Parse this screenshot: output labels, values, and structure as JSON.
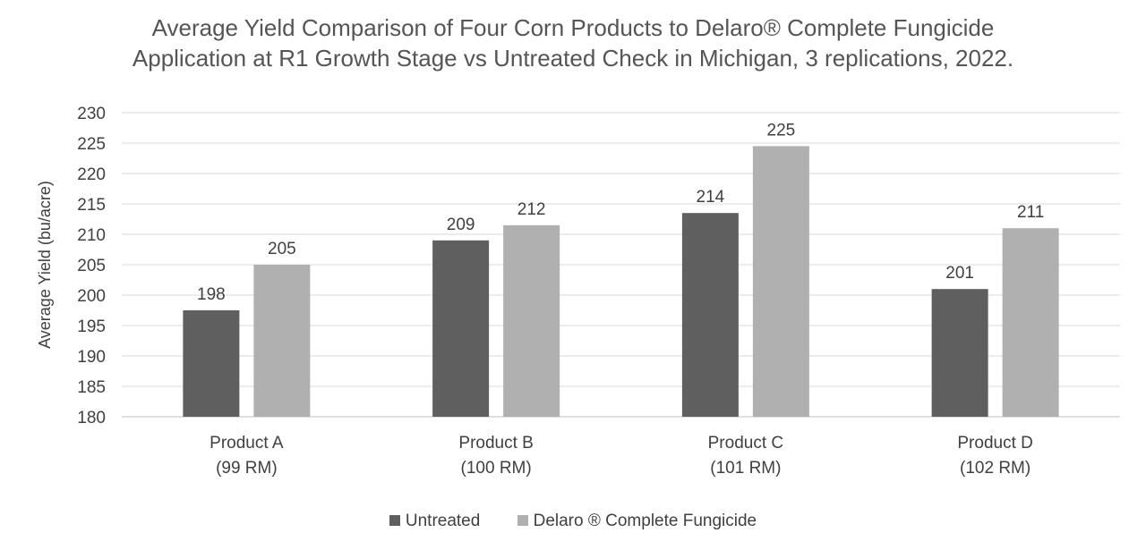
{
  "chart_data": {
    "type": "bar",
    "title_line1": "Average Yield Comparison of Four Corn Products to Delaro® Complete Fungicide",
    "title_line2": "Application at R1 Growth Stage vs Untreated Check in Michigan, 3 replications, 2022.",
    "ylabel": "Average Yield (bu/acre)",
    "xlabel": "",
    "ylim": [
      180,
      230
    ],
    "yticks": [
      180,
      185,
      190,
      195,
      200,
      205,
      210,
      215,
      220,
      225,
      230
    ],
    "grid": true,
    "legend_position": "bottom",
    "categories": [
      {
        "line1": "Product A",
        "line2": "(99 RM)"
      },
      {
        "line1": "Product B",
        "line2": "(100 RM)"
      },
      {
        "line1": "Product C",
        "line2": "(101 RM)"
      },
      {
        "line1": "Product D",
        "line2": "(102 RM)"
      }
    ],
    "series": [
      {
        "name": "Untreated",
        "color": "#5f5f5f",
        "values": [
          197.5,
          209,
          213.5,
          201
        ],
        "labels": [
          "198",
          "209",
          "214",
          "201"
        ]
      },
      {
        "name": "Delaro ® Complete Fungicide",
        "color": "#b0b0b0",
        "values": [
          205,
          211.5,
          224.5,
          211
        ],
        "labels": [
          "205",
          "212",
          "225",
          "211"
        ]
      }
    ]
  }
}
